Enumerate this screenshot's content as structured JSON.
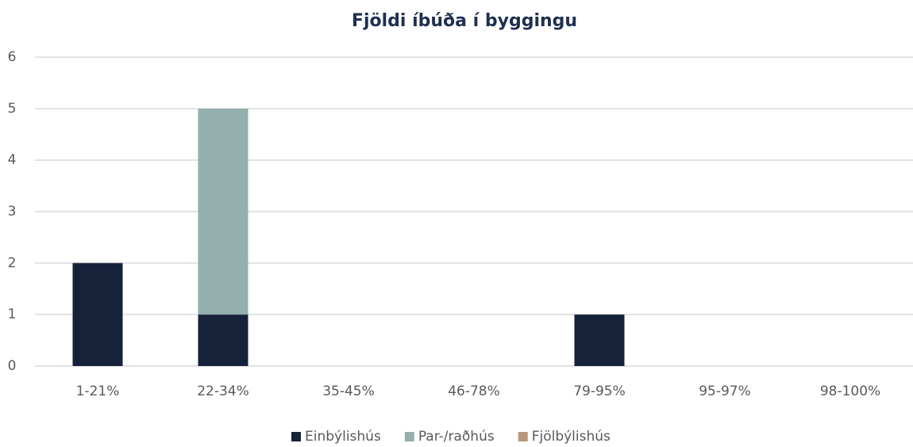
{
  "chart_data": {
    "type": "stacked_bar",
    "title": "Fjöldi íbúða í byggingu",
    "categories": [
      "1-21%",
      "22-34%",
      "35-45%",
      "46-78%",
      "79-95%",
      "95-97%",
      "98-100%"
    ],
    "series": [
      {
        "name": "Einbýlishús",
        "color": "#16213a",
        "values": [
          2,
          1,
          0,
          0,
          1,
          0,
          0
        ]
      },
      {
        "name": "Par-/raðhús",
        "color": "#93afae",
        "values": [
          0,
          4,
          0,
          0,
          0,
          0,
          0
        ]
      },
      {
        "name": "Fjölbýlishús",
        "color": "#b8977a",
        "values": [
          0,
          0,
          0,
          0,
          0,
          0,
          0
        ]
      }
    ],
    "ylim": [
      0,
      6
    ],
    "yticks": [
      0,
      1,
      2,
      3,
      4,
      5,
      6
    ],
    "grid": true,
    "legend": "bottom"
  }
}
